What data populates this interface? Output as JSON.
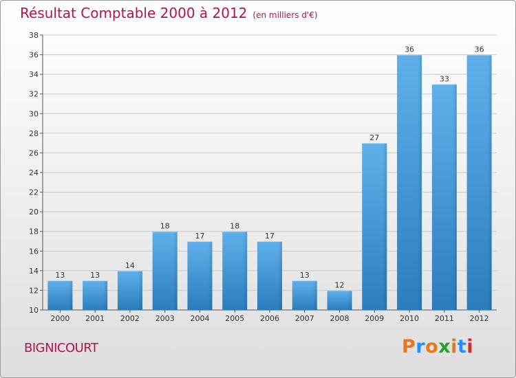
{
  "header": {
    "title": "Résultat Comptable 2000 à 2012",
    "unit": "(en milliers d'€)"
  },
  "footer": {
    "commune": "BIGNICOURT",
    "logo_text": "Proxiti",
    "logo_colors": [
      "#e8781e",
      "#1e90ff",
      "#e8781e",
      "#2aa02a",
      "#e8781e",
      "#1e90ff",
      "#d42a2a"
    ]
  },
  "colors": {
    "title": "#b5124f",
    "bar_light": "#5fb0ea",
    "bar_dark": "#2b7dbd",
    "axis": "#555555",
    "grid": "#c8c8c8"
  },
  "chart_data": {
    "type": "bar",
    "title": "Résultat Comptable 2000 à 2012",
    "subtitle": "(en milliers d'€)",
    "categories": [
      "2000",
      "2001",
      "2002",
      "2003",
      "2004",
      "2005",
      "2006",
      "2007",
      "2008",
      "2009",
      "2010",
      "2011",
      "2012"
    ],
    "values": [
      13,
      13,
      14,
      18,
      17,
      18,
      17,
      13,
      12,
      27,
      36,
      33,
      36
    ],
    "ylim": [
      10,
      38
    ],
    "yticks": [
      10,
      12,
      14,
      16,
      18,
      20,
      22,
      24,
      26,
      28,
      30,
      32,
      34,
      36,
      38
    ],
    "grid": true,
    "data_labels": true
  }
}
